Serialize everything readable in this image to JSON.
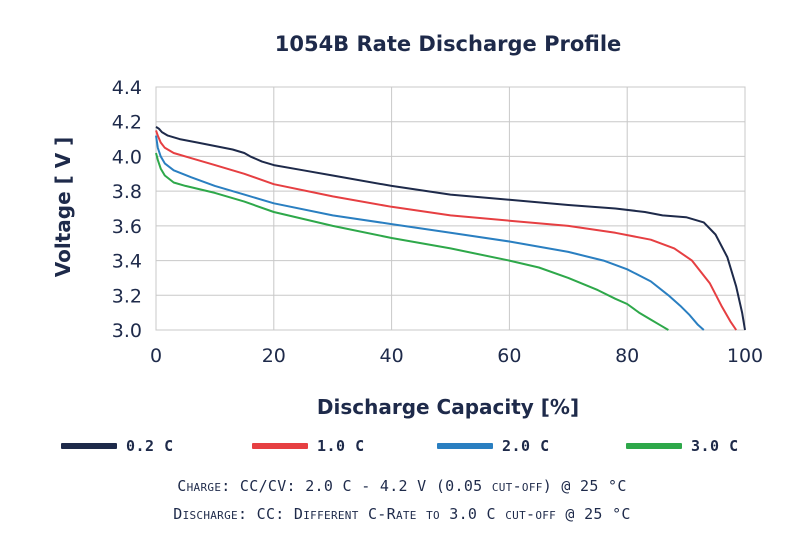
{
  "chart_data": {
    "type": "line",
    "title": "1054B Rate Discharge Profile",
    "xlabel": "Discharge Capacity [%]",
    "ylabel": "Voltage [ V ]",
    "xlim": [
      0,
      100
    ],
    "ylim": [
      3.0,
      4.4
    ],
    "xticks": [
      "0",
      "20",
      "40",
      "60",
      "80",
      "100"
    ],
    "yticks": [
      "3.0",
      "3.2",
      "3.4",
      "3.6",
      "3.8",
      "4.0",
      "4.2",
      "4.4"
    ],
    "grid": true,
    "legend_position": "bottom",
    "series": [
      {
        "name": "0.2 C",
        "color": "#1e2a4a",
        "x": [
          0,
          0.5,
          1,
          2,
          4,
          7,
          10,
          13,
          15,
          16,
          18,
          20,
          25,
          30,
          40,
          50,
          60,
          70,
          78,
          83,
          86,
          90,
          93,
          95,
          97,
          98.5,
          99.5,
          100
        ],
        "y": [
          4.17,
          4.16,
          4.14,
          4.12,
          4.1,
          4.08,
          4.06,
          4.04,
          4.02,
          4.0,
          3.97,
          3.95,
          3.92,
          3.89,
          3.83,
          3.78,
          3.75,
          3.72,
          3.7,
          3.68,
          3.66,
          3.65,
          3.62,
          3.55,
          3.42,
          3.25,
          3.1,
          3.0
        ]
      },
      {
        "name": "1.0 C",
        "color": "#e63f42",
        "x": [
          0,
          0.3,
          0.8,
          1.5,
          3,
          6,
          10,
          15,
          20,
          30,
          40,
          50,
          60,
          70,
          78,
          84,
          88,
          91,
          94,
          96,
          97.5,
          98.5
        ],
        "y": [
          4.15,
          4.12,
          4.08,
          4.05,
          4.02,
          3.99,
          3.95,
          3.9,
          3.84,
          3.77,
          3.71,
          3.66,
          3.63,
          3.6,
          3.56,
          3.52,
          3.47,
          3.4,
          3.27,
          3.14,
          3.05,
          3.0
        ]
      },
      {
        "name": "2.0 C",
        "color": "#2a7fc1",
        "x": [
          0,
          0.3,
          0.8,
          1.5,
          3,
          6,
          10,
          15,
          20,
          30,
          40,
          50,
          60,
          70,
          76,
          80,
          84,
          87,
          89,
          90.5,
          92,
          93
        ],
        "y": [
          4.12,
          4.05,
          4.0,
          3.96,
          3.92,
          3.88,
          3.83,
          3.78,
          3.73,
          3.66,
          3.61,
          3.56,
          3.51,
          3.45,
          3.4,
          3.35,
          3.28,
          3.2,
          3.14,
          3.09,
          3.03,
          3.0
        ]
      },
      {
        "name": "3.0 C",
        "color": "#2ea84a",
        "x": [
          0,
          0.3,
          0.8,
          1.5,
          3,
          5,
          10,
          15,
          20,
          30,
          40,
          50,
          60,
          65,
          70,
          75,
          78,
          80,
          82,
          84,
          85.5,
          87
        ],
        "y": [
          4.02,
          3.98,
          3.93,
          3.89,
          3.85,
          3.83,
          3.79,
          3.74,
          3.68,
          3.6,
          3.53,
          3.47,
          3.4,
          3.36,
          3.3,
          3.23,
          3.18,
          3.15,
          3.1,
          3.06,
          3.03,
          3.0
        ]
      }
    ]
  },
  "notes": {
    "charge": "Charge: CC/CV: 2.0 C - 4.2 V (0.05 cut-off) @ 25 °C",
    "discharge": "Discharge: CC: Different C-Rate to 3.0 C cut-off @ 25 °C"
  }
}
